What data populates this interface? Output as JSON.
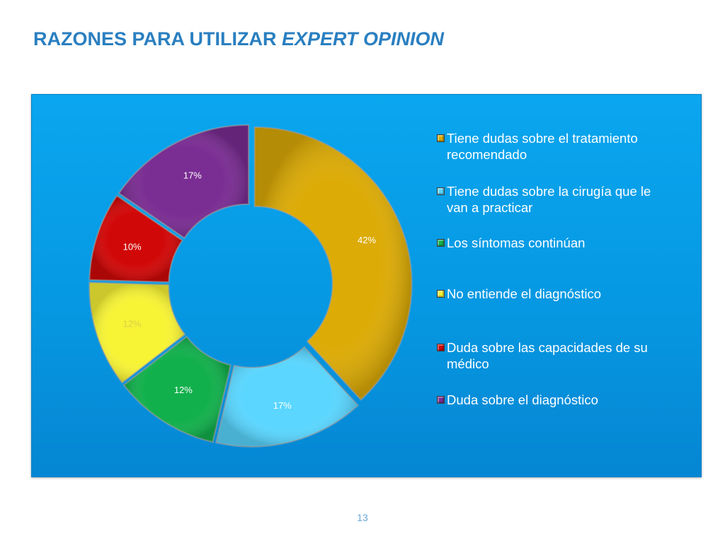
{
  "slide": {
    "title_main": "RAZONES PARA UTILIZAR ",
    "title_emph": "EXPERT OPINION",
    "page_number": "13"
  },
  "chart_data": {
    "type": "pie",
    "donut": true,
    "legend_position": "right",
    "categories": [
      "Tiene dudas sobre el tratamiento recomendado",
      "Tiene dudas sobre la cirugía que le van a practicar",
      "Los síntomas continúan",
      "No entiende el diagnóstico",
      "Duda sobre las capacidades de su médico",
      "Duda sobre el diagnóstico"
    ],
    "values": [
      42,
      17,
      12,
      12,
      10,
      17
    ],
    "data_labels": [
      "42%",
      "17%",
      "12%",
      "12%",
      "10%",
      "17%"
    ],
    "colors": [
      "#dcab06",
      "#5ad6ff",
      "#12b04c",
      "#f7f335",
      "#d10808",
      "#7a2d92"
    ],
    "background_color": "#0698e2"
  }
}
